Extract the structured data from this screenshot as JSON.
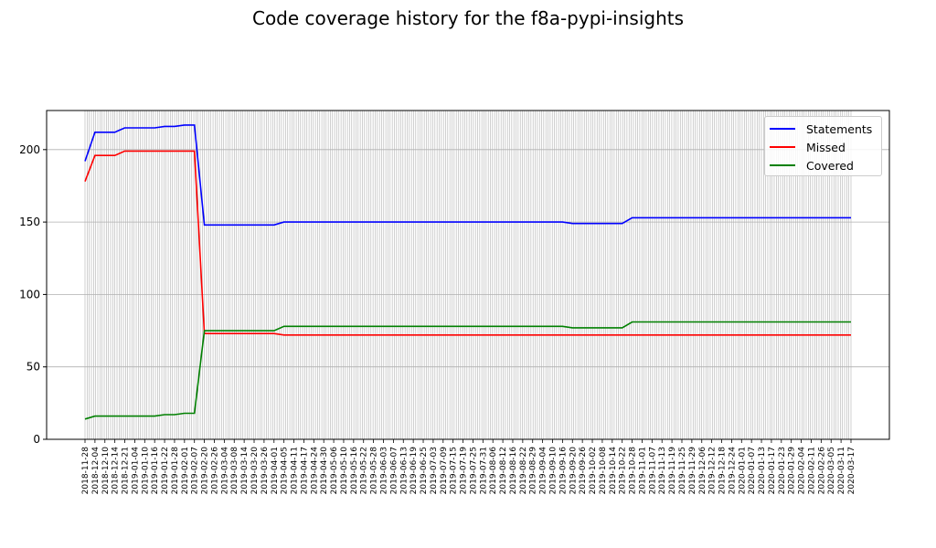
{
  "chart_data": {
    "type": "line",
    "title": "Code coverage history for the f8a-pypi-insights",
    "xlabel": "",
    "ylabel": "",
    "ylim": [
      0,
      227
    ],
    "yticks": [
      0,
      50,
      100,
      150,
      200
    ],
    "grid": true,
    "legend_position": "top-right",
    "x": [
      "2018-11-28",
      "2018-12-04",
      "2018-12-10",
      "2018-12-14",
      "2018-12-21",
      "2019-01-04",
      "2019-01-10",
      "2019-01-16",
      "2019-01-22",
      "2019-01-28",
      "2019-02-01",
      "2019-02-07",
      "2019-02-20",
      "2019-02-26",
      "2019-03-04",
      "2019-03-08",
      "2019-03-14",
      "2019-03-20",
      "2019-03-26",
      "2019-04-01",
      "2019-04-05",
      "2019-04-11",
      "2019-04-17",
      "2019-04-24",
      "2019-04-30",
      "2019-05-06",
      "2019-05-10",
      "2019-05-16",
      "2019-05-22",
      "2019-05-28",
      "2019-06-03",
      "2019-06-07",
      "2019-06-13",
      "2019-06-19",
      "2019-06-25",
      "2019-07-03",
      "2019-07-09",
      "2019-07-15",
      "2019-07-19",
      "2019-07-25",
      "2019-07-31",
      "2019-08-06",
      "2019-08-12",
      "2019-08-16",
      "2019-08-22",
      "2019-08-29",
      "2019-09-04",
      "2019-09-10",
      "2019-09-16",
      "2019-09-20",
      "2019-09-26",
      "2019-10-02",
      "2019-10-08",
      "2019-10-14",
      "2019-10-22",
      "2019-10-28",
      "2019-11-01",
      "2019-11-07",
      "2019-11-13",
      "2019-11-19",
      "2019-11-25",
      "2019-11-29",
      "2019-12-06",
      "2019-12-12",
      "2019-12-18",
      "2019-12-24",
      "2020-01-01",
      "2020-01-07",
      "2020-01-13",
      "2020-01-17",
      "2020-01-23",
      "2020-01-29",
      "2020-02-04",
      "2020-02-11",
      "2020-02-26",
      "2020-03-05",
      "2020-03-11",
      "2020-03-17"
    ],
    "series": [
      {
        "name": "Statements",
        "color": "#0000ff",
        "values": [
          192,
          212,
          212,
          212,
          215,
          215,
          215,
          215,
          216,
          216,
          217,
          217,
          148,
          148,
          148,
          148,
          148,
          148,
          148,
          148,
          150,
          150,
          150,
          150,
          150,
          150,
          150,
          150,
          150,
          150,
          150,
          150,
          150,
          150,
          150,
          150,
          150,
          150,
          150,
          150,
          150,
          150,
          150,
          150,
          150,
          150,
          150,
          150,
          150,
          149,
          149,
          149,
          149,
          149,
          149,
          153,
          153,
          153,
          153,
          153,
          153,
          153,
          153,
          153,
          153,
          153,
          153,
          153,
          153,
          153,
          153,
          153,
          153,
          153,
          153,
          153,
          153,
          153
        ]
      },
      {
        "name": "Missed",
        "color": "#ff0000",
        "values": [
          178,
          196,
          196,
          196,
          199,
          199,
          199,
          199,
          199,
          199,
          199,
          199,
          73,
          73,
          73,
          73,
          73,
          73,
          73,
          73,
          72,
          72,
          72,
          72,
          72,
          72,
          72,
          72,
          72,
          72,
          72,
          72,
          72,
          72,
          72,
          72,
          72,
          72,
          72,
          72,
          72,
          72,
          72,
          72,
          72,
          72,
          72,
          72,
          72,
          72,
          72,
          72,
          72,
          72,
          72,
          72,
          72,
          72,
          72,
          72,
          72,
          72,
          72,
          72,
          72,
          72,
          72,
          72,
          72,
          72,
          72,
          72,
          72,
          72,
          72,
          72,
          72,
          72
        ]
      },
      {
        "name": "Covered",
        "color": "#008000",
        "values": [
          14,
          16,
          16,
          16,
          16,
          16,
          16,
          16,
          17,
          17,
          18,
          18,
          75,
          75,
          75,
          75,
          75,
          75,
          75,
          75,
          78,
          78,
          78,
          78,
          78,
          78,
          78,
          78,
          78,
          78,
          78,
          78,
          78,
          78,
          78,
          78,
          78,
          78,
          78,
          78,
          78,
          78,
          78,
          78,
          78,
          78,
          78,
          78,
          78,
          77,
          77,
          77,
          77,
          77,
          77,
          81,
          81,
          81,
          81,
          81,
          81,
          81,
          81,
          81,
          81,
          81,
          81,
          81,
          81,
          81,
          81,
          81,
          81,
          81,
          81,
          81,
          81,
          81
        ]
      }
    ]
  }
}
